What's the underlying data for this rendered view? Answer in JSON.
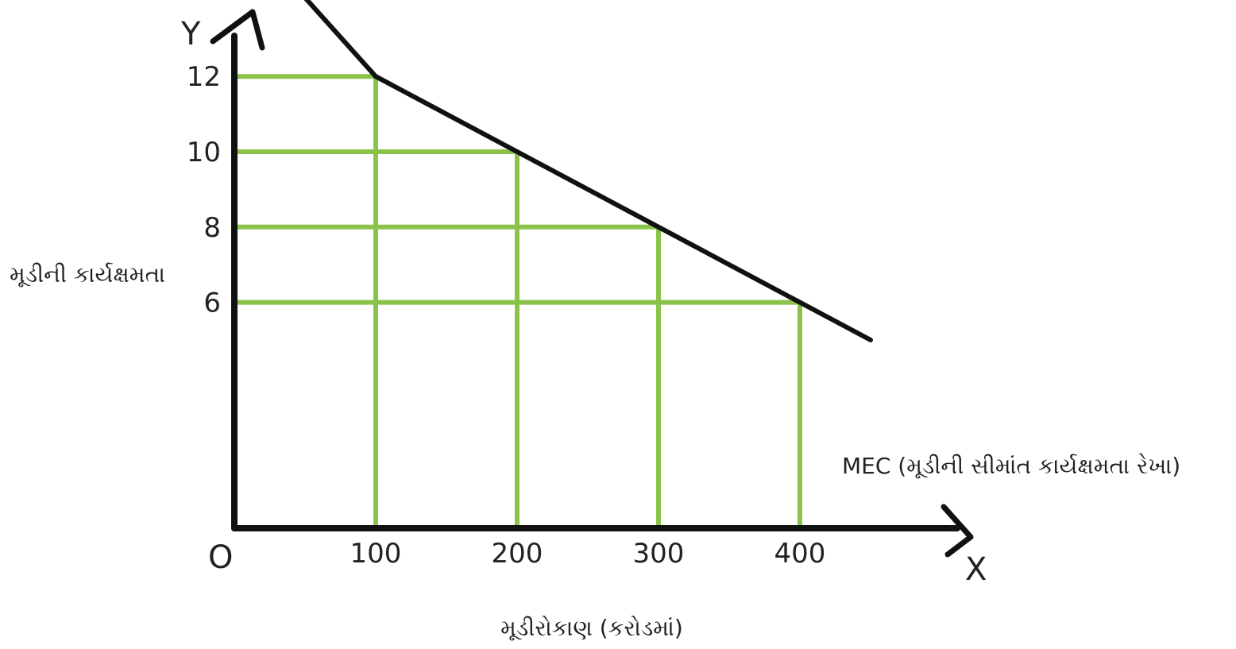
{
  "chart_data": {
    "type": "line",
    "title": "",
    "xlabel": "મૂડીરોકાણ (કરોડમાં)",
    "ylabel": "મૂડીની કાર્યક્ષમતા",
    "axis_letters": {
      "x": "X",
      "y": "Y",
      "origin": "O"
    },
    "x_ticks": [
      "100",
      "200",
      "300",
      "400"
    ],
    "y_ticks": [
      "12",
      "10",
      "8",
      "6"
    ],
    "xlim": [
      0,
      500
    ],
    "ylim": [
      0,
      15
    ],
    "series": [
      {
        "name": "MEC (મૂડીની સીમાંત કાર્યક્ષમતા રેખા)",
        "x": [
          45,
          100,
          200,
          300,
          400,
          450
        ],
        "y": [
          14.3,
          12,
          10,
          8,
          6,
          5
        ]
      }
    ],
    "reference_points": [
      {
        "x": 100,
        "y": 12
      },
      {
        "x": 200,
        "y": 10
      },
      {
        "x": 300,
        "y": 8
      },
      {
        "x": 400,
        "y": 6
      }
    ],
    "grid": false,
    "colors": {
      "curve": "#111111",
      "guides": "#8bc34a",
      "axes": "#111111",
      "text": "#222222"
    }
  }
}
